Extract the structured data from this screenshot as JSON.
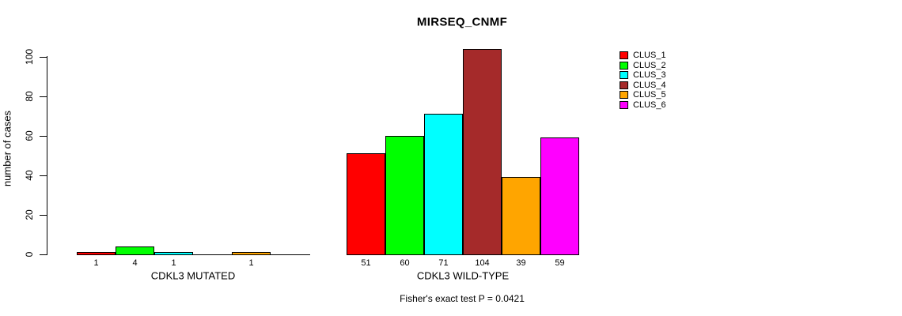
{
  "chart_data": {
    "type": "bar",
    "title": "MIRSEQ_CNMF",
    "ylabel": "number of cases",
    "xlabel": "",
    "ylim": [
      0,
      100
    ],
    "yticks": [
      0,
      20,
      40,
      60,
      80,
      100
    ],
    "grid": false,
    "legend_position": "right",
    "series": [
      {
        "name": "CLUS_1",
        "color": "#FF0000"
      },
      {
        "name": "CLUS_2",
        "color": "#00FF00"
      },
      {
        "name": "CLUS_3",
        "color": "#00FFFF"
      },
      {
        "name": "CLUS_4",
        "color": "#A52A2A"
      },
      {
        "name": "CLUS_5",
        "color": "#FFA500"
      },
      {
        "name": "CLUS_6",
        "color": "#FF00FF"
      }
    ],
    "groups": [
      {
        "label": "CDKL3 MUTATED",
        "values": [
          1,
          4,
          1,
          0,
          1,
          0
        ]
      },
      {
        "label": "CDKL3 WILD-TYPE",
        "values": [
          51,
          60,
          71,
          104,
          39,
          59
        ]
      }
    ],
    "annotation": "Fisher's exact test P = 0.0421"
  }
}
